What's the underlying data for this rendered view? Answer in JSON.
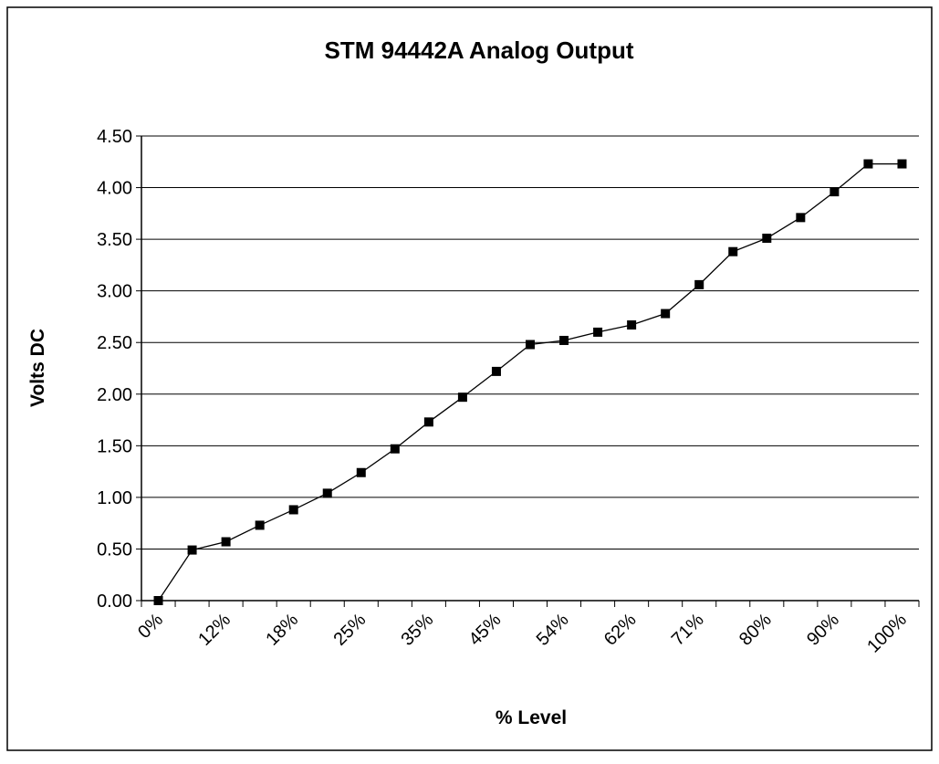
{
  "chart_data": {
    "type": "line",
    "title": "STM 94442A Analog Output",
    "x_label": "% Level",
    "y_label": "Volts DC",
    "categories": [
      "0%",
      null,
      "12%",
      null,
      "18%",
      null,
      "25%",
      null,
      "35%",
      null,
      "45%",
      null,
      "54%",
      null,
      "62%",
      null,
      "71%",
      null,
      "80%",
      null,
      "90%",
      null,
      "100%"
    ],
    "series": [
      {
        "name": "Volts DC",
        "color": "#000000",
        "values": [
          0,
          0.49,
          0.57,
          0.73,
          0.88,
          1.04,
          1.24,
          1.47,
          1.73,
          1.97,
          2.22,
          2.48,
          2.52,
          2.6,
          2.67,
          2.78,
          3.06,
          3.38,
          3.51,
          3.71,
          3.96,
          4.23,
          4.23
        ]
      }
    ],
    "ylim": [
      0,
      4.5
    ],
    "yticks": [
      {
        "value": 0,
        "label": "0.00"
      },
      {
        "value": 0.5,
        "label": "0.50"
      },
      {
        "value": 1,
        "label": "1.00"
      },
      {
        "value": 1.5,
        "label": "1.50"
      },
      {
        "value": 2,
        "label": "2.00"
      },
      {
        "value": 2.5,
        "label": "2.50"
      },
      {
        "value": 3,
        "label": "3.00"
      },
      {
        "value": 3.5,
        "label": "3.50"
      },
      {
        "value": 4,
        "label": "4.00"
      },
      {
        "value": 4.5,
        "label": "4.50"
      }
    ],
    "grid": true
  }
}
